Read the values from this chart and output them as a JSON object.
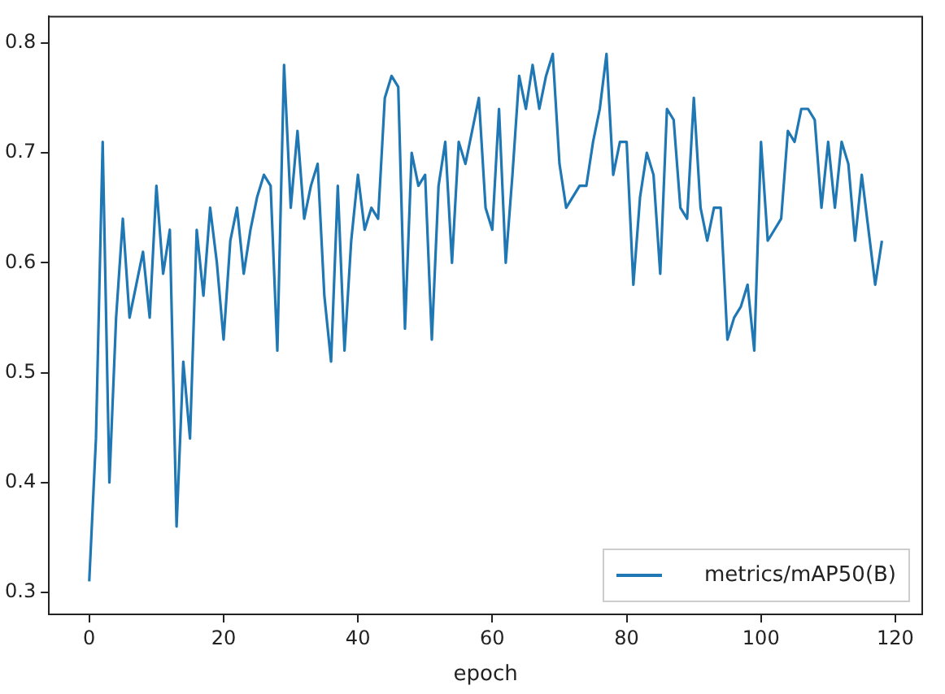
{
  "chart_data": {
    "type": "line",
    "xlabel": "epoch",
    "x": [
      0,
      1,
      2,
      3,
      4,
      5,
      6,
      7,
      8,
      9,
      10,
      11,
      12,
      13,
      14,
      15,
      16,
      17,
      18,
      19,
      20,
      21,
      22,
      23,
      24,
      25,
      26,
      27,
      28,
      29,
      30,
      31,
      32,
      33,
      34,
      35,
      36,
      37,
      38,
      39,
      40,
      41,
      42,
      43,
      44,
      45,
      46,
      47,
      48,
      49,
      50,
      51,
      52,
      53,
      54,
      55,
      56,
      57,
      58,
      59,
      60,
      61,
      62,
      63,
      64,
      65,
      66,
      67,
      68,
      69,
      70,
      71,
      72,
      73,
      74,
      75,
      76,
      77,
      78,
      79,
      80,
      81,
      82,
      83,
      84,
      85,
      86,
      87,
      88,
      89,
      90,
      91,
      92,
      93,
      94,
      95,
      96,
      97,
      98,
      99,
      100,
      101,
      102,
      103,
      104,
      105,
      106,
      107,
      108,
      109,
      110,
      111,
      112,
      113,
      114,
      115,
      116,
      117,
      118
    ],
    "series": [
      {
        "name": "metrics/mAP50(B)",
        "color": "#1f77b4",
        "values": [
          0.31,
          0.44,
          0.71,
          0.4,
          0.55,
          0.64,
          0.55,
          0.58,
          0.61,
          0.55,
          0.67,
          0.59,
          0.63,
          0.36,
          0.51,
          0.44,
          0.63,
          0.57,
          0.65,
          0.6,
          0.53,
          0.62,
          0.65,
          0.59,
          0.63,
          0.66,
          0.68,
          0.67,
          0.52,
          0.78,
          0.65,
          0.72,
          0.64,
          0.67,
          0.69,
          0.57,
          0.51,
          0.67,
          0.52,
          0.62,
          0.68,
          0.63,
          0.65,
          0.64,
          0.75,
          0.77,
          0.76,
          0.54,
          0.7,
          0.67,
          0.68,
          0.53,
          0.67,
          0.71,
          0.6,
          0.71,
          0.69,
          0.72,
          0.75,
          0.65,
          0.63,
          0.74,
          0.6,
          0.68,
          0.77,
          0.74,
          0.78,
          0.74,
          0.77,
          0.79,
          0.69,
          0.65,
          0.66,
          0.67,
          0.67,
          0.71,
          0.74,
          0.79,
          0.68,
          0.71,
          0.71,
          0.58,
          0.66,
          0.7,
          0.68,
          0.59,
          0.74,
          0.73,
          0.65,
          0.64,
          0.75,
          0.65,
          0.62,
          0.65,
          0.65,
          0.53,
          0.55,
          0.56,
          0.58,
          0.52,
          0.71,
          0.62,
          0.63,
          0.64,
          0.72,
          0.71,
          0.74,
          0.74,
          0.73,
          0.65,
          0.71,
          0.65,
          0.71,
          0.69,
          0.62,
          0.68,
          0.63,
          0.58,
          0.62
        ]
      }
    ],
    "xlim": [
      -6,
      124
    ],
    "xticks": [
      0,
      20,
      40,
      60,
      80,
      100,
      120
    ],
    "ylim": [
      0.28,
      0.824
    ],
    "yticks": [
      0.3,
      0.4,
      0.5,
      0.6,
      0.7,
      0.8
    ],
    "legend": "bottom right",
    "marker": "none",
    "line_style": "solid",
    "grid": false
  }
}
